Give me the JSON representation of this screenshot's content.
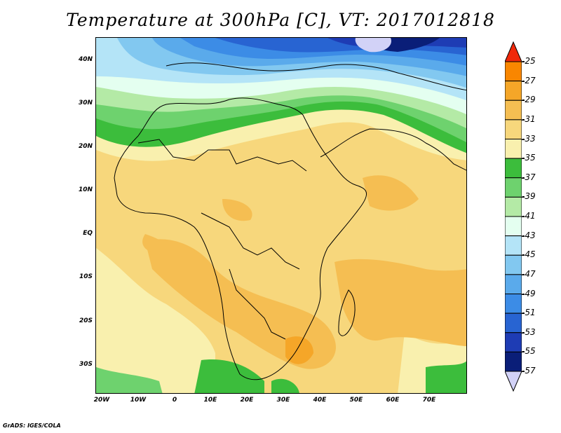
{
  "title": "Temperature at 300hPa [C], VT: 2017012818",
  "credit": "GrADS: IGES/COLA",
  "axes": {
    "lat_labels": [
      "40N",
      "30N",
      "20N",
      "10N",
      "EQ",
      "10S",
      "20S",
      "30S"
    ],
    "lon_labels": [
      "20W",
      "10W",
      "0",
      "10E",
      "20E",
      "30E",
      "40E",
      "50E",
      "60E",
      "70E"
    ]
  },
  "colorbar": {
    "labels": [
      "-25",
      "-27",
      "-29",
      "-31",
      "-33",
      "-35",
      "-37",
      "-39",
      "-41",
      "-43",
      "-45",
      "-47",
      "-49",
      "-51",
      "-53",
      "-55",
      "-57"
    ],
    "colors": [
      "#f55a00",
      "#f98600",
      "#f5a628",
      "#f5be52",
      "#f7d77c",
      "#f9f0ae",
      "#3cbd3c",
      "#6ed26e",
      "#b4eaa6",
      "#e4fff0",
      "#b4e4f7",
      "#82c8f0",
      "#5aaaeb",
      "#3c8ce6",
      "#2864d2",
      "#1e3cb4",
      "#0a1e78"
    ],
    "top_arrow_color": "#f0280a",
    "bottom_arrow_color": "#d2d2f7"
  },
  "chart_data": {
    "type": "heatmap",
    "title": "Temperature at 300hPa [C], VT: 2017012818",
    "x_range_lon": [
      -25,
      80
    ],
    "y_range_lat": [
      -37,
      45
    ],
    "units": "C",
    "levels": [
      -57,
      -55,
      -53,
      -51,
      -49,
      -47,
      -45,
      -43,
      -41,
      -39,
      -37,
      -35,
      -33,
      -31,
      -29,
      -27,
      -25
    ]
  }
}
